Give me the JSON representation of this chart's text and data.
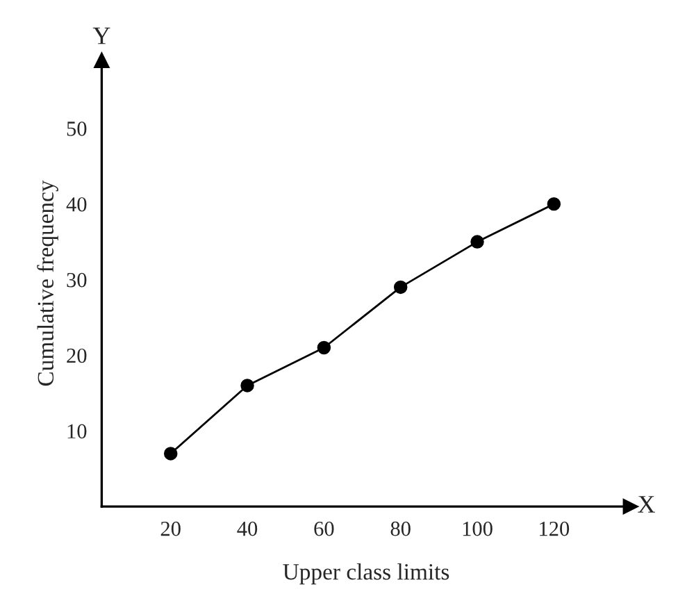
{
  "chart_data": {
    "type": "line",
    "xlabel": "Upper class limits",
    "ylabel": "Cumulative frequency",
    "x": [
      20,
      40,
      60,
      80,
      100,
      120
    ],
    "series": [
      {
        "color": "#000000",
        "values": [
          7,
          16,
          21,
          29,
          35,
          40
        ]
      }
    ],
    "marker": "circle",
    "line_style": "solid",
    "xlim": [
      2,
      140
    ],
    "ylim": [
      0,
      59
    ],
    "xticks": [
      20,
      40,
      60,
      80,
      100,
      120
    ],
    "yticks": [
      10,
      20,
      30,
      40,
      50
    ],
    "grid": false,
    "annotations": [
      "X",
      "Y"
    ]
  }
}
